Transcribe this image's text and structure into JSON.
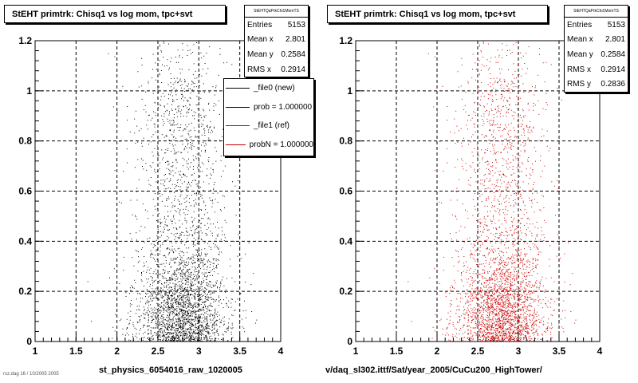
{
  "footnote": "rsz.dag 16 / 10/2005 2005",
  "pads": [
    {
      "title": "StEHT primtrk: Chisq1 vs log mom, tpc+svt",
      "xlabel": "st_physics_6054016_raw_1020005",
      "stats": {
        "name": "StEHTQaPrkChi1MomTS",
        "rows": [
          {
            "label": "Entries",
            "value": "5153"
          },
          {
            "label": "Mean x",
            "value": "2.801"
          },
          {
            "label": "Mean y",
            "value": "0.2584"
          },
          {
            "label": "RMS x",
            "value": "0.2914"
          }
        ]
      },
      "legend": [
        {
          "label": "_file0 (new)",
          "color": "#000000"
        },
        {
          "label": "prob = 1.000000",
          "color": "#000000"
        },
        {
          "label": "_file1 (ref)",
          "color": "#cc0000"
        },
        {
          "label": "probN = 1.000000",
          "color": "#cc0000"
        }
      ]
    },
    {
      "title": "StEHT primtrk: Chisq1 vs log mom, tpc+svt",
      "xlabel": "v/daq_sl302.ittf/Sat/year_2005/CuCu200_HighTower/",
      "stats": {
        "name": "StEHTQaPrkChi1MomTS",
        "rows": [
          {
            "label": "Entries",
            "value": "5153"
          },
          {
            "label": "Mean x",
            "value": "2.801"
          },
          {
            "label": "Mean y",
            "value": "0.2584"
          },
          {
            "label": "RMS x",
            "value": "0.2914"
          },
          {
            "label": "RMS y",
            "value": "0.2836"
          }
        ]
      },
      "legend": []
    }
  ],
  "chart_data": [
    {
      "type": "scatter",
      "title": "StEHT primtrk: Chisq1 vs log mom, tpc+svt",
      "xlabel": "st_physics_6054016_raw_1020005",
      "ylabel": "",
      "xlim": [
        1,
        4
      ],
      "ylim": [
        0,
        1.2
      ],
      "xticks": [
        "1",
        "1.5",
        "2",
        "2.5",
        "3",
        "3.5",
        "4"
      ],
      "yticks": [
        "0",
        "0.2",
        "0.4",
        "0.6",
        "0.8",
        "1",
        "1.2"
      ],
      "grid": true,
      "marker_color": "#000000",
      "series": [
        {
          "name": "_file0 (new)",
          "entries": 5153,
          "mean_x": 2.801,
          "mean_y": 0.2584,
          "rms_x": 0.2914,
          "rms_y": 0.2836
        }
      ]
    },
    {
      "type": "scatter",
      "title": "StEHT primtrk: Chisq1 vs log mom, tpc+svt",
      "xlabel": "v/daq_sl302.ittf/Sat/year_2005/CuCu200_HighTower/",
      "ylabel": "",
      "xlim": [
        1,
        4
      ],
      "ylim": [
        0,
        1.2
      ],
      "xticks": [
        "1",
        "1.5",
        "2",
        "2.5",
        "3",
        "3.5",
        "4"
      ],
      "yticks": [
        "0",
        "0.2",
        "0.4",
        "0.6",
        "0.8",
        "1",
        "1.2"
      ],
      "grid": true,
      "marker_color": "#cc0000",
      "series": [
        {
          "name": "_file1 (ref)",
          "entries": 5153,
          "mean_x": 2.801,
          "mean_y": 0.2584,
          "rms_x": 0.2914,
          "rms_y": 0.2836
        }
      ]
    }
  ]
}
